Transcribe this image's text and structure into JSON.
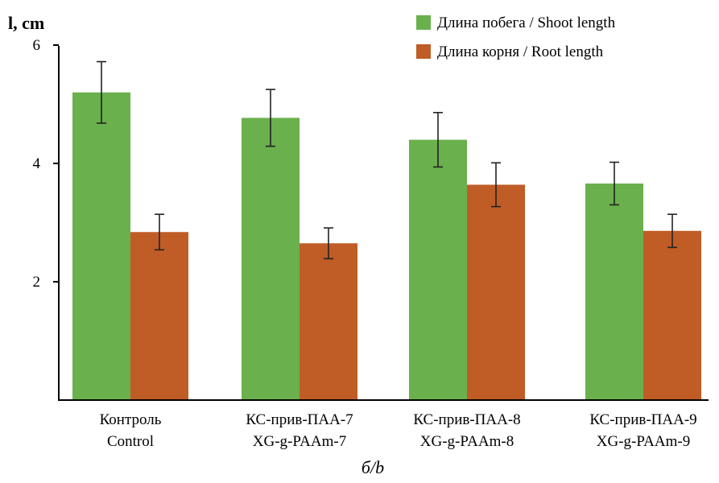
{
  "chart_data": {
    "type": "bar",
    "ylabel": "l, cm",
    "ylim": [
      0,
      6
    ],
    "yticks": [
      2,
      4,
      6
    ],
    "grid": false,
    "legend_position": "top-right",
    "categories": [
      {
        "line1": "Контроль",
        "line2": "Control"
      },
      {
        "line1": "КС-прив-ПАА-7",
        "line2": "XG-g-PAAm-7"
      },
      {
        "line1": "КС-прив-ПАА-8",
        "line2": "XG-g-PAAm-8"
      },
      {
        "line1": "КС-прив-ПАА-9",
        "line2": "XG-g-PAAm-9"
      }
    ],
    "series": [
      {
        "name": "Длина побега / Shoot length",
        "color": "#6ab04c",
        "values": [
          5.2,
          4.77,
          4.4,
          3.66
        ],
        "errors": [
          0.52,
          0.48,
          0.46,
          0.36
        ]
      },
      {
        "name": "Длина корня / Root length",
        "color": "#c05c26",
        "values": [
          2.84,
          2.65,
          3.64,
          2.86
        ],
        "errors": [
          0.3,
          0.26,
          0.37,
          0.28
        ]
      }
    ],
    "caption": "б/b"
  }
}
